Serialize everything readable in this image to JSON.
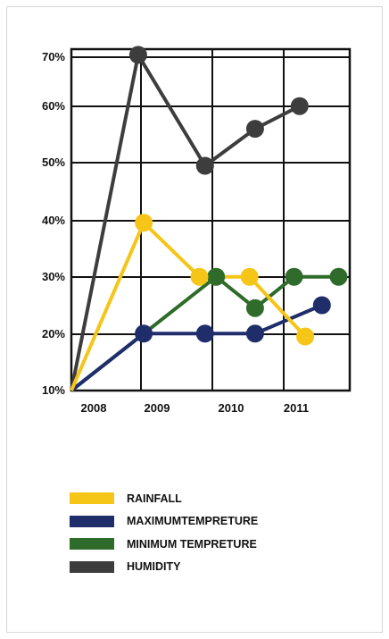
{
  "chart_data": {
    "type": "line",
    "x_labels": [
      "2008",
      "2009",
      "2010",
      "2011"
    ],
    "y_labels": [
      "70%",
      "60%",
      "50%",
      "40%",
      "30%",
      "20%",
      "10%"
    ],
    "ylim": [
      10,
      70
    ],
    "grid": true,
    "legend_position": "bottom",
    "series": [
      {
        "name": "RAINFALL",
        "color": "#f5c518",
        "points": [
          {
            "x": 2007.0,
            "y": 10
          },
          {
            "x": 2008.3,
            "y": 39.5
          },
          {
            "x": 2009.3,
            "y": 30
          },
          {
            "x": 2010.2,
            "y": 30
          },
          {
            "x": 2011.2,
            "y": 19.5
          }
        ]
      },
      {
        "name": "MAXIMUMTEMPRETURE",
        "color": "#1f2d6b",
        "points": [
          {
            "x": 2007.0,
            "y": 10
          },
          {
            "x": 2008.3,
            "y": 20
          },
          {
            "x": 2009.4,
            "y": 20
          },
          {
            "x": 2010.3,
            "y": 20
          },
          {
            "x": 2011.5,
            "y": 25
          }
        ]
      },
      {
        "name": "MINIMUM TEMPRETURE",
        "color": "#2f6b2a",
        "points": [
          {
            "x": 2007.0,
            "y": 10
          },
          {
            "x": 2009.6,
            "y": 30
          },
          {
            "x": 2010.3,
            "y": 24.5
          },
          {
            "x": 2011.0,
            "y": 30
          },
          {
            "x": 2011.8,
            "y": 30
          }
        ]
      },
      {
        "name": "HUMIDITY",
        "color": "#3d3d3d",
        "points": [
          {
            "x": 2007.0,
            "y": 10
          },
          {
            "x": 2008.2,
            "y": 69
          },
          {
            "x": 2009.4,
            "y": 49.5
          },
          {
            "x": 2010.3,
            "y": 56
          },
          {
            "x": 2011.1,
            "y": 60
          }
        ]
      }
    ]
  }
}
